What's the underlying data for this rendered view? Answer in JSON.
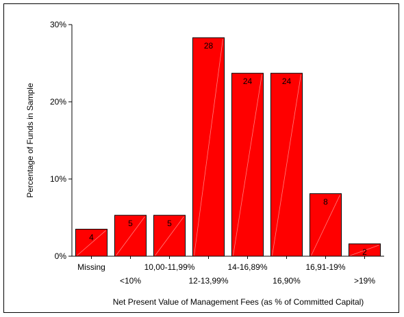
{
  "chart_data": {
    "type": "bar",
    "categories": [
      "Missing",
      "<10%",
      "10,00-11,99%",
      "12-13,99%",
      "14-16,89%",
      "16,90%",
      "16,91-19%",
      ">19%"
    ],
    "values": [
      4,
      5,
      5,
      28,
      24,
      24,
      8,
      2
    ],
    "percent_values": [
      3.5,
      5.3,
      5.3,
      28.3,
      23.7,
      23.7,
      8.1,
      1.6
    ],
    "ylabel": "Percentage of Funds in Sample",
    "xlabel": "Net Present Value of Management Fees (as % of Committed Capital)",
    "ylim": [
      0,
      30
    ],
    "yticks": [
      {
        "value": 0,
        "label": "0%"
      },
      {
        "value": 10,
        "label": "10%"
      },
      {
        "value": 20,
        "label": "20%"
      },
      {
        "value": 30,
        "label": "30%"
      }
    ],
    "grid": false,
    "bar_color": "#ff0000"
  }
}
